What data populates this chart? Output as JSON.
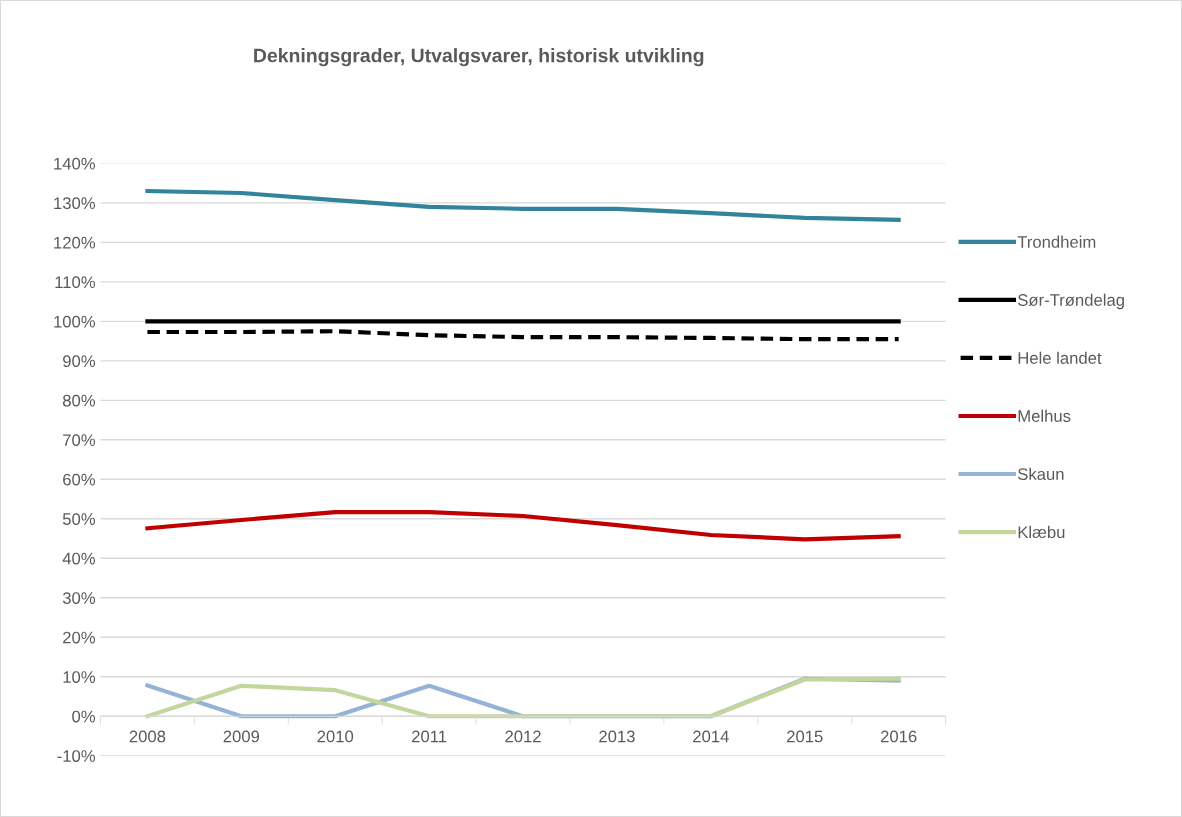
{
  "chart_data": {
    "type": "line",
    "title": "Dekningsgrader, Utvalgsvarer, historisk utvikling",
    "categories": [
      "2008",
      "2009",
      "2010",
      "2011",
      "2012",
      "2013",
      "2014",
      "2015",
      "2016"
    ],
    "series": [
      {
        "name": "Trondheim",
        "color": "#31849b",
        "values": [
          133,
          132.5,
          130.7,
          129,
          128.5,
          128.5,
          127.4,
          126.2,
          125.7
        ]
      },
      {
        "name": "Sør-Trøndelag",
        "color": "#000000",
        "values": [
          100,
          100,
          100,
          100,
          100,
          100,
          100,
          100,
          100
        ]
      },
      {
        "name": "Hele landet",
        "color": "#000000",
        "line_style": "dashed",
        "values": [
          97.3,
          97.3,
          97.5,
          96.5,
          96,
          96,
          95.8,
          95.5,
          95.5
        ]
      },
      {
        "name": "Melhus",
        "color": "#c00000",
        "values": [
          47.6,
          49.7,
          51.7,
          51.7,
          50.7,
          48.4,
          45.9,
          44.8,
          45.6
        ]
      },
      {
        "name": "Skaun",
        "color": "#95b3d7",
        "values": [
          7.8,
          0,
          0,
          7.7,
          0,
          0,
          0,
          9.5,
          9
        ]
      },
      {
        "name": "Klæbu",
        "color": "#c3d69b",
        "values": [
          0,
          7.7,
          6.6,
          0,
          0,
          0,
          0,
          9.3,
          9.5
        ]
      }
    ],
    "ylim": [
      -10,
      140
    ],
    "yticks": [
      {
        "value": -10,
        "label": "-10%"
      },
      {
        "value": 0,
        "label": "0%"
      },
      {
        "value": 10,
        "label": "10%"
      },
      {
        "value": 20,
        "label": "20%"
      },
      {
        "value": 30,
        "label": "30%"
      },
      {
        "value": 40,
        "label": "40%"
      },
      {
        "value": 50,
        "label": "50%"
      },
      {
        "value": 60,
        "label": "60%"
      },
      {
        "value": 70,
        "label": "70%"
      },
      {
        "value": 80,
        "label": "80%"
      },
      {
        "value": 90,
        "label": "90%"
      },
      {
        "value": 100,
        "label": "100%"
      },
      {
        "value": 110,
        "label": "110%"
      },
      {
        "value": 120,
        "label": "120%"
      },
      {
        "value": 130,
        "label": "130%"
      },
      {
        "value": 140,
        "label": "140%"
      }
    ],
    "grid": "y",
    "legend": "right",
    "line_style": "solid",
    "marker": "none"
  }
}
